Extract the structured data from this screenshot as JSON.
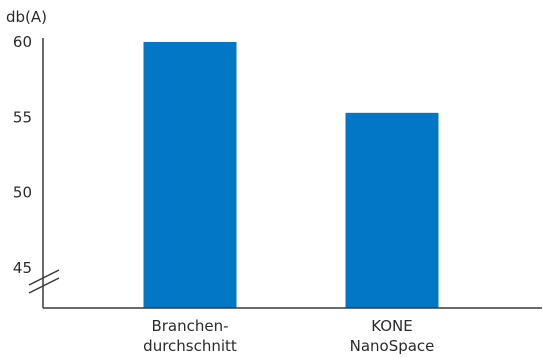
{
  "chart_data": {
    "type": "bar",
    "unit_label": "db(A)",
    "categories": [
      [
        "Branchen-",
        "durchschnitt"
      ],
      [
        "KONE",
        "NanoSpace"
      ]
    ],
    "values": [
      60,
      55.3
    ],
    "yticks": [
      {
        "value": 60,
        "label": "60"
      },
      {
        "value": 55,
        "label": "55"
      },
      {
        "value": 50,
        "label": "50"
      },
      {
        "value": 45,
        "label": "45"
      }
    ],
    "ylim": [
      43,
      61
    ],
    "axis_break": true,
    "grid": false,
    "legend": "none",
    "colors": {
      "bar": "#0277c5",
      "axis": "#3a3a3a",
      "text": "#2b2b2b"
    }
  }
}
